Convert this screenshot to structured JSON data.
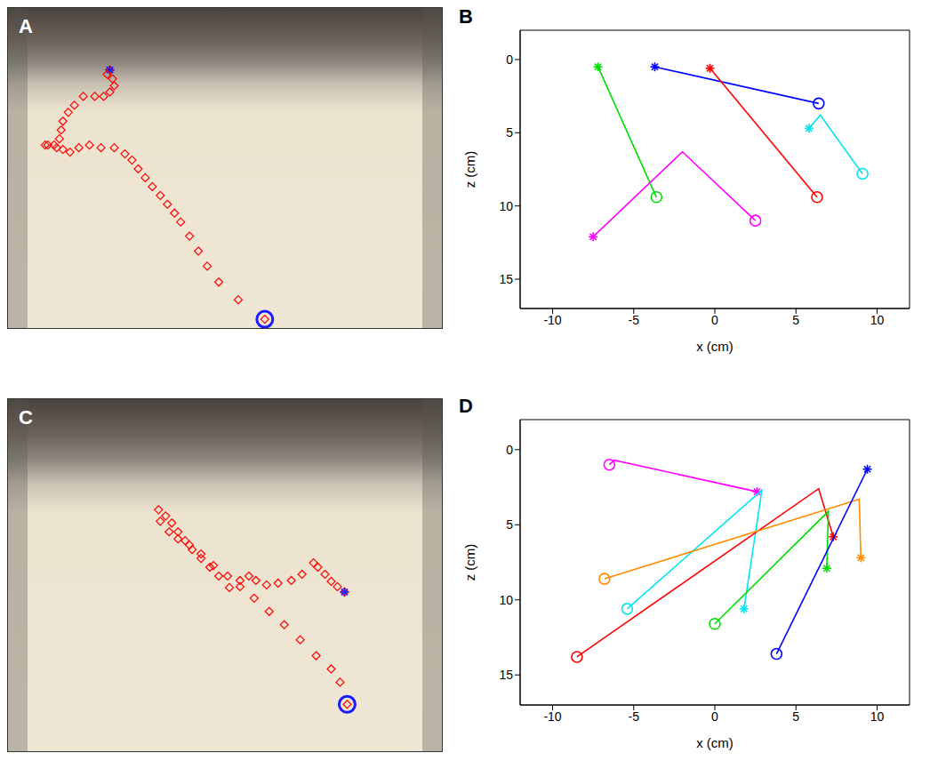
{
  "chart_data": [
    {
      "type": "scatter",
      "title": "A",
      "tick_labels": false,
      "xlim": [
        0,
        490
      ],
      "ylim": [
        0,
        362
      ],
      "color": "#ff0000",
      "x": [
        115,
        112,
        118,
        120,
        115,
        108,
        98,
        85,
        75,
        68,
        62,
        60,
        58,
        52,
        45,
        42,
        55,
        62,
        70,
        80,
        92,
        105,
        120,
        132,
        140,
        147,
        155,
        163,
        172,
        180,
        188,
        195,
        205,
        215,
        225,
        238,
        260,
        290
      ],
      "y": [
        70,
        75,
        80,
        88,
        95,
        100,
        100,
        100,
        110,
        118,
        128,
        138,
        148,
        155,
        155,
        155,
        158,
        160,
        163,
        158,
        155,
        158,
        158,
        165,
        172,
        182,
        192,
        202,
        212,
        222,
        232,
        242,
        258,
        275,
        292,
        310,
        330,
        352
      ]
    },
    {
      "type": "line",
      "title": "B",
      "xlabel": "x (cm)",
      "ylabel": "z (cm)",
      "xlim": [
        -12,
        12
      ],
      "ylim": [
        -2,
        17
      ],
      "xticks": [
        -10,
        -5,
        0,
        5,
        10
      ],
      "yticks": [
        0,
        5,
        10,
        15
      ],
      "series": [
        {
          "color": "#00dd00",
          "x": [
            -7.2,
            -3.6
          ],
          "y": [
            0.5,
            9.4
          ]
        },
        {
          "color": "#0000ff",
          "x": [
            -3.7,
            6.4
          ],
          "y": [
            0.5,
            3.0
          ]
        },
        {
          "color": "#ff0000",
          "x": [
            -0.3,
            6.3
          ],
          "y": [
            0.6,
            9.4
          ]
        },
        {
          "color": "#00e5ee",
          "x": [
            5.8,
            6.5,
            9.1
          ],
          "y": [
            4.7,
            3.8,
            7.8
          ]
        },
        {
          "color": "#ff00ff",
          "x": [
            -7.5,
            -2.0,
            2.5
          ],
          "y": [
            12.1,
            6.3,
            11.0
          ]
        }
      ]
    },
    {
      "type": "scatter",
      "title": "C",
      "tick_labels": false,
      "xlim": [
        0,
        490
      ],
      "ylim": [
        0,
        398
      ],
      "color": "#ff0000",
      "x": [
        380,
        372,
        365,
        358,
        350,
        345,
        332,
        320,
        305,
        292,
        280,
        272,
        262,
        250,
        238,
        228,
        218,
        208,
        200,
        192,
        185,
        178,
        170,
        172,
        182,
        192,
        205,
        218,
        232,
        248,
        262,
        278,
        295,
        312,
        330,
        348,
        365,
        375,
        383
      ],
      "y": [
        218,
        212,
        206,
        198,
        190,
        185,
        198,
        205,
        208,
        210,
        205,
        200,
        205,
        213,
        200,
        190,
        180,
        170,
        160,
        150,
        140,
        132,
        125,
        138,
        150,
        158,
        165,
        175,
        188,
        200,
        212,
        225,
        240,
        255,
        272,
        290,
        305,
        320,
        345
      ]
    },
    {
      "type": "line",
      "title": "D",
      "xlabel": "x (cm)",
      "ylabel": "z (cm)",
      "xlim": [
        -12,
        12
      ],
      "ylim": [
        -2,
        17
      ],
      "xticks": [
        -10,
        -5,
        0,
        5,
        10
      ],
      "yticks": [
        0,
        5,
        10,
        15
      ],
      "series": [
        {
          "color": "#ff00ff",
          "x": [
            2.6,
            -6.2,
            -6.5
          ],
          "y": [
            2.8,
            0.7,
            1.0
          ]
        },
        {
          "color": "#00e5ee",
          "x": [
            1.8,
            2.9,
            -5.4
          ],
          "y": [
            10.6,
            2.7,
            10.6
          ]
        },
        {
          "color": "#ff0000",
          "x": [
            7.3,
            6.4,
            -8.5
          ],
          "y": [
            5.8,
            2.6,
            13.8
          ]
        },
        {
          "color": "#ff8c00",
          "x": [
            9.0,
            8.9,
            -6.8
          ],
          "y": [
            7.2,
            3.3,
            8.6
          ]
        },
        {
          "color": "#00dd00",
          "x": [
            6.9,
            7.0,
            0.0
          ],
          "y": [
            7.9,
            4.1,
            11.6
          ]
        },
        {
          "color": "#0000ff",
          "x": [
            9.4,
            3.8
          ],
          "y": [
            1.3,
            13.6
          ]
        }
      ]
    }
  ]
}
